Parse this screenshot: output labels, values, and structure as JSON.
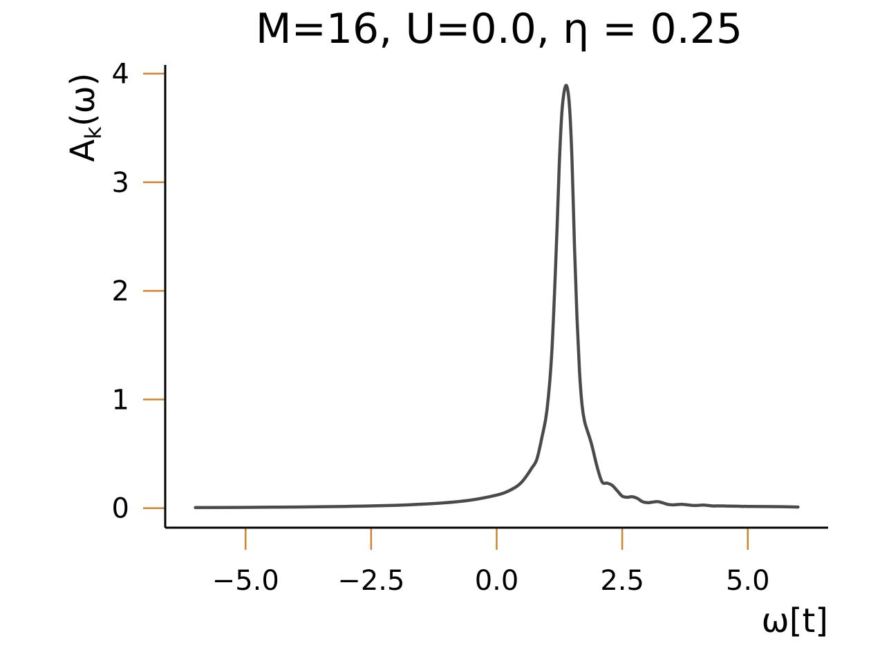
{
  "chart_data": {
    "type": "line",
    "title": "M=16, U=0.0, η = 0.25",
    "xlabel": "ω[t]",
    "ylabel": "A",
    "ylabel_subscript": "k",
    "ylabel_suffix": "(ω)",
    "xlim": [
      -6.6,
      6.6
    ],
    "ylim": [
      -0.18,
      4.08
    ],
    "xticks": [
      -5.0,
      -2.5,
      0.0,
      2.5,
      5.0
    ],
    "xtick_labels": [
      "−5.0",
      "−2.5",
      "0.0",
      "2.5",
      "5.0"
    ],
    "yticks": [
      0,
      1,
      2,
      3,
      4
    ],
    "ytick_labels": [
      "0",
      "1",
      "2",
      "3",
      "4"
    ],
    "grid": false,
    "legend": false,
    "colors": {
      "line": "#4a4a4a",
      "tick": "#d4822a",
      "axis": "#000000"
    },
    "series": [
      {
        "x": [
          -6.0,
          -5.0,
          -4.0,
          -3.0,
          -2.0,
          -1.5,
          -1.0,
          -0.5,
          0.0,
          0.2,
          0.4,
          0.5,
          0.6,
          0.7,
          0.8,
          0.9,
          1.0,
          1.1,
          1.2,
          1.25,
          1.3,
          1.35,
          1.4,
          1.45,
          1.5,
          1.55,
          1.6,
          1.65,
          1.7,
          1.75,
          1.8,
          1.85,
          1.9,
          2.0,
          2.1,
          2.2,
          2.3,
          2.4,
          2.5,
          2.6,
          2.7,
          2.8,
          2.9,
          3.0,
          3.1,
          3.2,
          3.3,
          3.4,
          3.5,
          3.6,
          3.7,
          3.8,
          3.9,
          4.0,
          4.1,
          4.2,
          4.3,
          4.4,
          4.5,
          4.6,
          4.7,
          4.8,
          4.9,
          5.0,
          5.5,
          6.0
        ],
        "y": [
          0.005,
          0.007,
          0.01,
          0.016,
          0.026,
          0.036,
          0.05,
          0.075,
          0.12,
          0.15,
          0.2,
          0.24,
          0.3,
          0.37,
          0.45,
          0.65,
          0.9,
          1.45,
          2.55,
          3.2,
          3.65,
          3.85,
          3.88,
          3.7,
          3.2,
          2.4,
          1.75,
          1.25,
          0.95,
          0.8,
          0.72,
          0.65,
          0.57,
          0.38,
          0.24,
          0.23,
          0.21,
          0.16,
          0.11,
          0.1,
          0.105,
          0.09,
          0.06,
          0.05,
          0.055,
          0.06,
          0.05,
          0.035,
          0.03,
          0.033,
          0.035,
          0.03,
          0.025,
          0.025,
          0.028,
          0.025,
          0.02,
          0.02,
          0.02,
          0.019,
          0.018,
          0.018,
          0.016,
          0.016,
          0.014,
          0.01
        ]
      }
    ]
  }
}
